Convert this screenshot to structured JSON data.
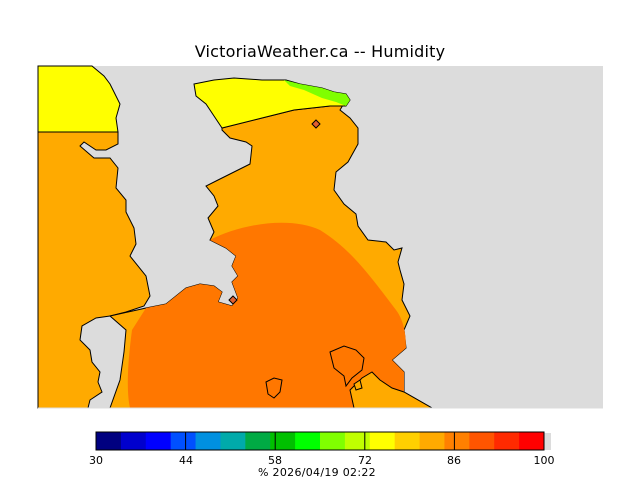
{
  "title": "VictoriaWeather.ca -- Humidity",
  "map": {
    "colors": {
      "background": "#dcdcdc",
      "land_yellow": "#ffff00",
      "land_light_orange": "#ffaa00",
      "land_dark_orange": "#ff7700",
      "land_green": "#7fff00",
      "coastline": "#000000",
      "station_marker": "#e06030"
    }
  },
  "colorbar": {
    "min": 30,
    "max": 100,
    "bins": 22,
    "tick_values": [
      30,
      44,
      58,
      72,
      86,
      100
    ],
    "tick_labels": [
      "30",
      "44",
      "58",
      "72",
      "86",
      "100"
    ],
    "colors": [
      "#000080",
      "#0000cd",
      "#0000ff",
      "#0050ff",
      "#0090e0",
      "#00aaaa",
      "#00aa44",
      "#00c000",
      "#00ff00",
      "#80ff00",
      "#c0ff00",
      "#ffff00",
      "#ffd000",
      "#ffaa00",
      "#ff8000",
      "#ff5500",
      "#ff2a00",
      "#ff0000"
    ]
  },
  "footer": {
    "text": "%  2026/04/19 02:22"
  }
}
